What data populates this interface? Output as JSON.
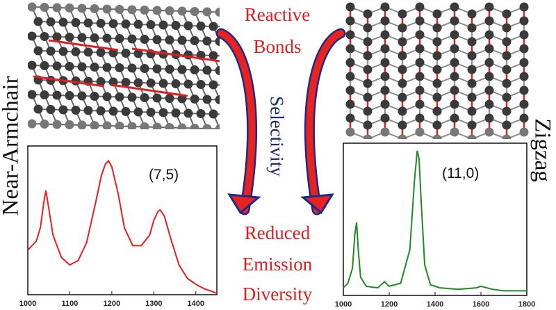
{
  "labels": {
    "reactive": "Reactive",
    "bonds": "Bonds",
    "selectivity": "Selectivity",
    "reduced": "Reduced",
    "emission": "Emission",
    "diversity": "Diversity",
    "near_armchair": "Near-Armchair",
    "zigzag": "Zigzag"
  },
  "colors": {
    "text_red": "#e01e1e",
    "arrow_red": "#e8231f",
    "arrow_blue": "#1a2a8c",
    "line_red": "#ee1c1c",
    "line_green": "#1f8a1f",
    "atom": "#3a3a3a",
    "bond_red": "#e02020"
  },
  "chart_data": [
    {
      "type": "line",
      "label": "(7,5)",
      "x_ticks": [
        "1000",
        "1100",
        "1200",
        "1300",
        "1400"
      ],
      "xlim": [
        1000,
        1450
      ],
      "x": [
        1000,
        1020,
        1030,
        1038,
        1043,
        1050,
        1060,
        1080,
        1100,
        1120,
        1140,
        1160,
        1175,
        1185,
        1192,
        1200,
        1215,
        1230,
        1250,
        1270,
        1290,
        1300,
        1310,
        1315,
        1325,
        1340,
        1360,
        1380,
        1400,
        1420,
        1440,
        1450
      ],
      "y": [
        0.3,
        0.36,
        0.45,
        0.62,
        0.7,
        0.58,
        0.4,
        0.25,
        0.2,
        0.23,
        0.35,
        0.6,
        0.8,
        0.88,
        0.9,
        0.86,
        0.68,
        0.45,
        0.33,
        0.33,
        0.4,
        0.5,
        0.56,
        0.57,
        0.53,
        0.38,
        0.2,
        0.11,
        0.07,
        0.04,
        0.02,
        0.01
      ]
    },
    {
      "type": "line",
      "label": "(11,0)",
      "x_ticks": [
        "1000",
        "1200",
        "1400",
        "1600",
        "1800"
      ],
      "xlim": [
        1000,
        1800
      ],
      "x": [
        1000,
        1020,
        1040,
        1050,
        1058,
        1065,
        1075,
        1100,
        1150,
        1180,
        1200,
        1250,
        1290,
        1310,
        1322,
        1330,
        1340,
        1355,
        1380,
        1420,
        1500,
        1580,
        1600,
        1650,
        1700,
        1800
      ],
      "y": [
        0.05,
        0.08,
        0.18,
        0.4,
        0.48,
        0.3,
        0.12,
        0.06,
        0.05,
        0.09,
        0.06,
        0.08,
        0.3,
        0.75,
        0.95,
        0.9,
        0.6,
        0.2,
        0.07,
        0.05,
        0.04,
        0.05,
        0.06,
        0.04,
        0.03,
        0.03
      ]
    }
  ]
}
